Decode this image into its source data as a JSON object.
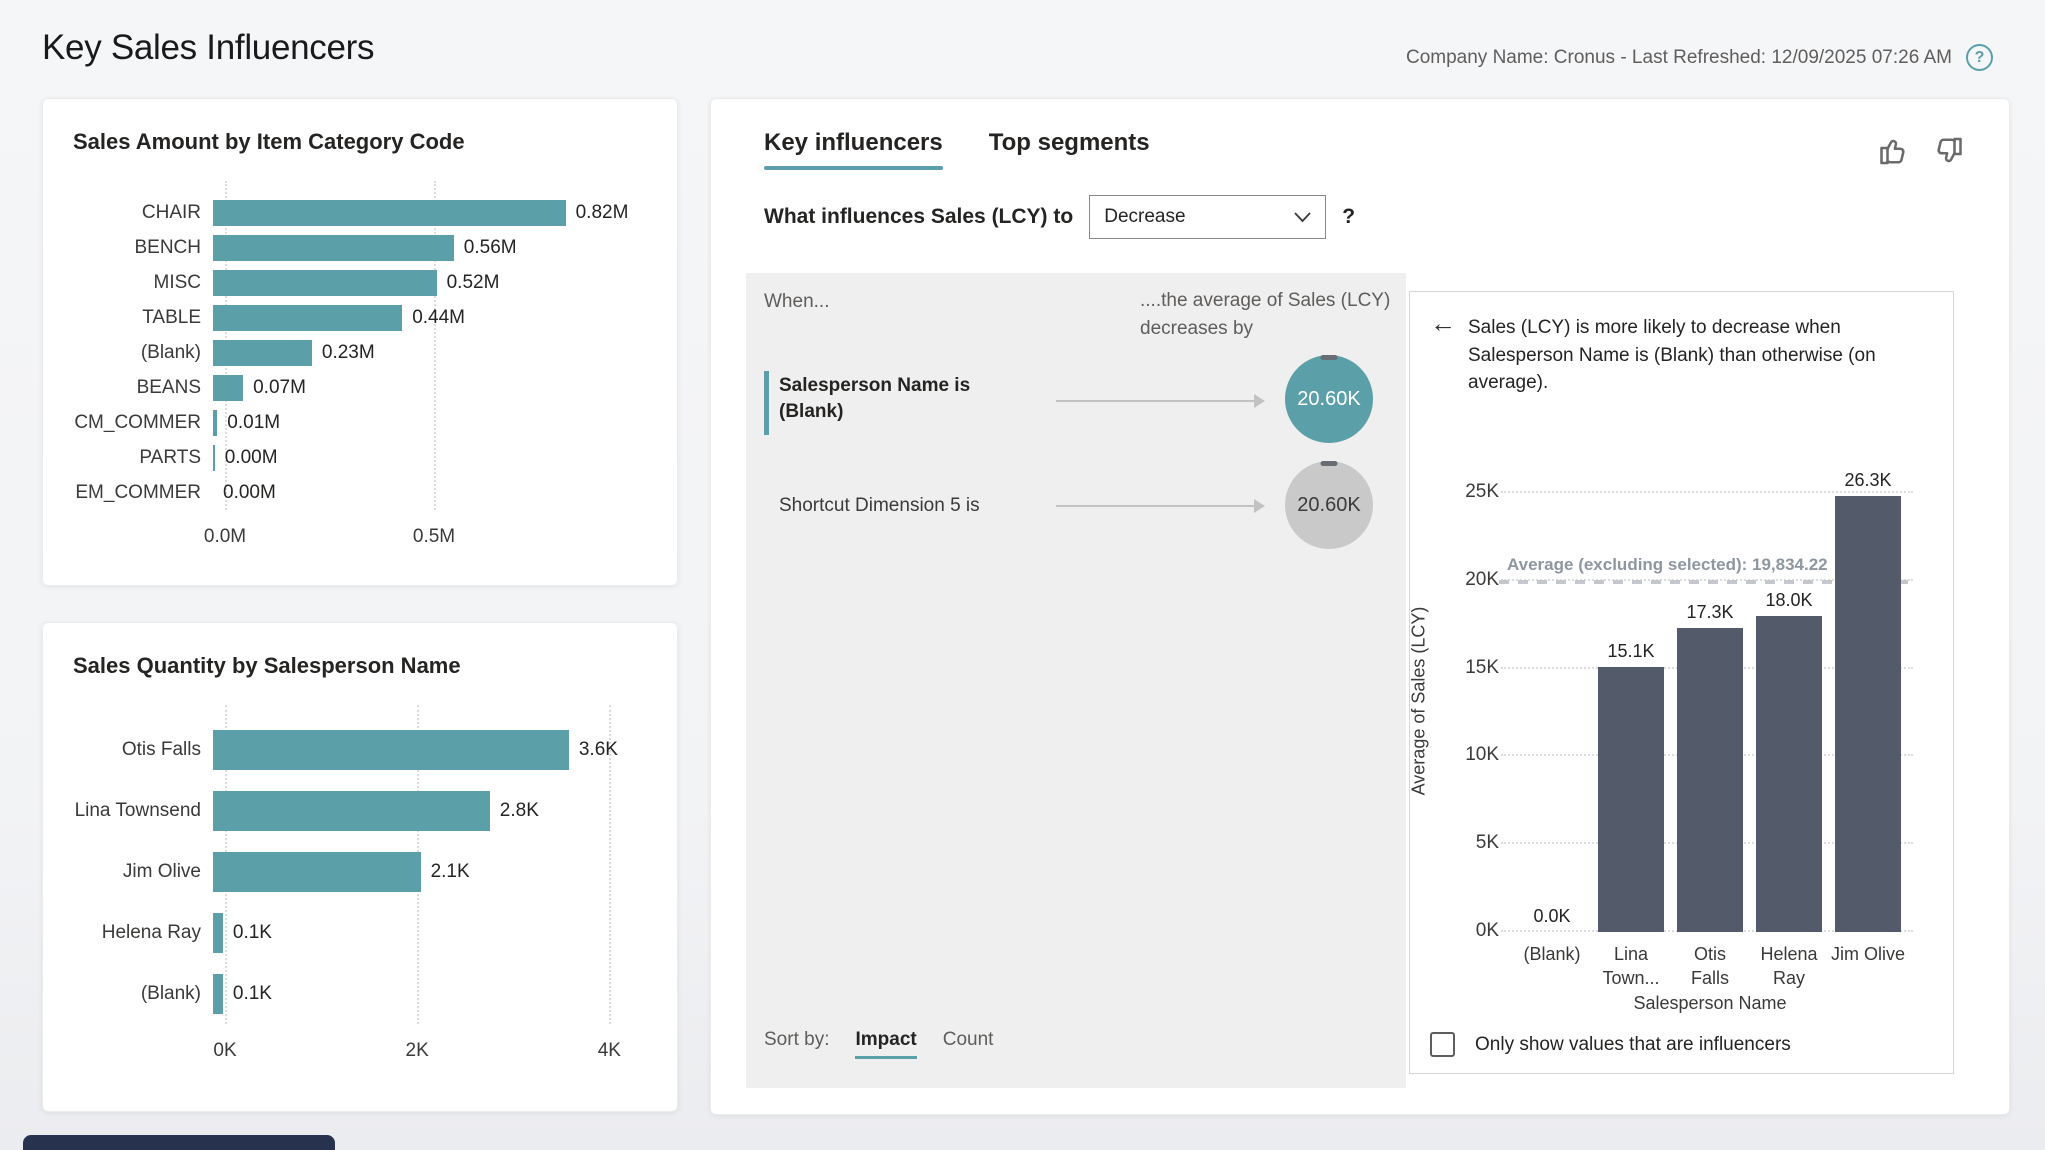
{
  "page": {
    "title": "Key Sales Influencers",
    "meta": "Company Name: Cronus - Last Refreshed: 12/09/2025 07:26 AM",
    "help_icon": "?"
  },
  "colors": {
    "teal": "#5B9FA8",
    "dark_bar": "#535B6A",
    "panel_gray": "#EFEFEF",
    "bubble_gray": "#C9C9C9"
  },
  "chart_data": [
    {
      "type": "bar",
      "orientation": "horizontal",
      "title": "Sales Amount by Item Category Code",
      "categories": [
        "CHAIR",
        "BENCH",
        "MISC",
        "TABLE",
        "(Blank)",
        "BEANS",
        "CM_COMMER",
        "PARTS",
        "EM_COMMER"
      ],
      "values": [
        0.82,
        0.56,
        0.52,
        0.44,
        0.23,
        0.07,
        0.01,
        0.004,
        0.0
      ],
      "value_labels": [
        "0.82M",
        "0.56M",
        "0.52M",
        "0.44M",
        "0.23M",
        "0.07M",
        "0.01M",
        "0.00M",
        "0.00M"
      ],
      "axis_max": 1.0,
      "x_ticks": [
        {
          "label": "0.0M",
          "value": 0.0
        },
        {
          "label": "0.5M",
          "value": 0.5
        }
      ],
      "grid": true,
      "bar_color": "#5B9FA8"
    },
    {
      "type": "bar",
      "orientation": "horizontal",
      "title": "Sales Quantity by Salesperson Name",
      "categories": [
        "Otis Falls",
        "Lina Townsend",
        "Jim Olive",
        "Helena Ray",
        "(Blank)"
      ],
      "values": [
        3.6,
        2.8,
        2.1,
        0.1,
        0.1
      ],
      "value_labels": [
        "3.6K",
        "2.8K",
        "2.1K",
        "0.1K",
        "0.1K"
      ],
      "axis_max": 4.35,
      "x_ticks": [
        {
          "label": "0K",
          "value": 0
        },
        {
          "label": "2K",
          "value": 2
        },
        {
          "label": "4K",
          "value": 4
        }
      ],
      "grid": true,
      "bar_color": "#5B9FA8"
    },
    {
      "type": "column",
      "title": "",
      "xlabel": "Salesperson Name",
      "ylabel": "Average of Sales (LCY)",
      "categories": [
        "(Blank)",
        "Lina Town...",
        "Otis Falls",
        "Helena Ray",
        "Jim Olive"
      ],
      "values": [
        0.0,
        15.1,
        17.3,
        18.0,
        26.3
      ],
      "value_labels": [
        "0.0K",
        "15.1K",
        "17.3K",
        "18.0K",
        "26.3K"
      ],
      "y_max": 26.3,
      "y_ticks": [
        {
          "label": "0K",
          "value": 0
        },
        {
          "label": "5K",
          "value": 5
        },
        {
          "label": "10K",
          "value": 10
        },
        {
          "label": "15K",
          "value": 15
        },
        {
          "label": "20K",
          "value": 20
        },
        {
          "label": "25K",
          "value": 25
        }
      ],
      "average_line": {
        "label": "Average (excluding selected): 19,834.22",
        "value": 19.834
      },
      "grid": true,
      "bar_color": "#535B6A"
    }
  ],
  "influencers": {
    "tabs": [
      {
        "label": "Key influencers",
        "selected": true
      },
      {
        "label": "Top segments",
        "selected": false
      }
    ],
    "question_prefix": "What influences Sales (LCY) to",
    "dropdown_value": "Decrease",
    "question_suffix": "?",
    "when_label": "When...",
    "effect_header_line1": "....the average of Sales (LCY)",
    "effect_header_line2": "decreases by",
    "rows": [
      {
        "condition": "Salesperson Name is (Blank)",
        "bubble_value": "20.60K",
        "highlighted": true
      },
      {
        "condition": "Shortcut Dimension 5 is",
        "bubble_value": "20.60K",
        "highlighted": false
      }
    ],
    "sort_by": {
      "label": "Sort by:",
      "options": [
        {
          "label": "Impact",
          "selected": true
        },
        {
          "label": "Count",
          "selected": false
        }
      ]
    }
  },
  "insight": {
    "back_arrow": "←",
    "text": "Sales (LCY) is more likely to decrease when Salesperson Name is (Blank) than otherwise (on average).",
    "checkbox_label": "Only show values that are influencers",
    "checkbox_checked": false
  }
}
